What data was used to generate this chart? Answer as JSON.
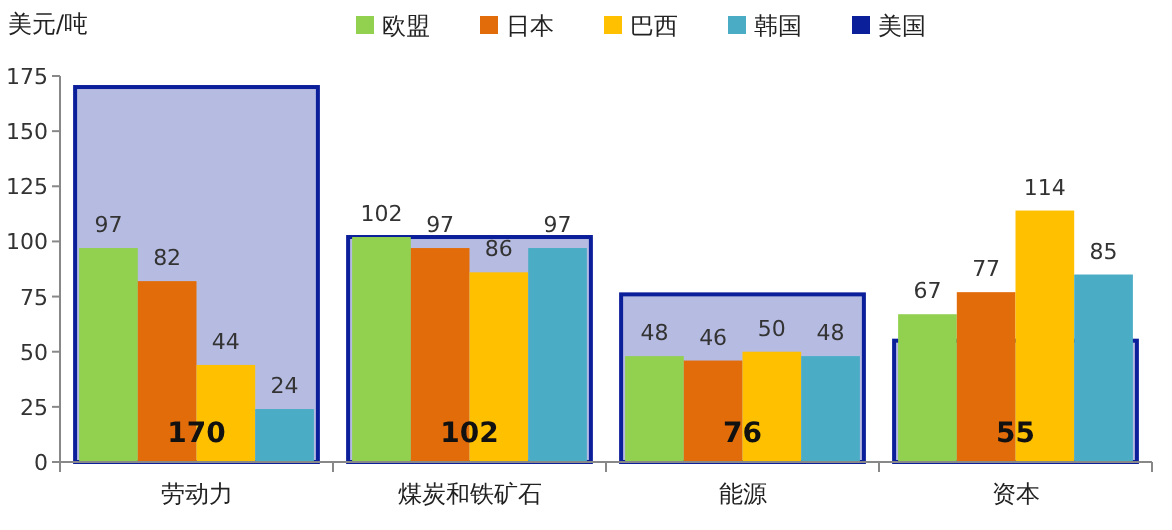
{
  "chart_data": {
    "type": "bar",
    "ylabel": "美元/吨",
    "categories": [
      "劳动力",
      "煤炭和铁矿石",
      "能源",
      "资本"
    ],
    "series": [
      {
        "name": "欧盟",
        "color": "#92d050",
        "values": [
          97,
          102,
          48,
          67
        ]
      },
      {
        "name": "日本",
        "color": "#e36c0a",
        "values": [
          82,
          97,
          46,
          77
        ]
      },
      {
        "name": "巴西",
        "color": "#ffc000",
        "values": [
          44,
          86,
          50,
          114
        ]
      },
      {
        "name": "韩国",
        "color": "#4bacc6",
        "values": [
          24,
          97,
          48,
          85
        ]
      },
      {
        "name": "美国",
        "color": "#0c1f9a",
        "values": [
          170,
          102,
          76,
          55
        ],
        "value_labels": [
          "170",
          "102",
          "76",
          "55"
        ]
      }
    ],
    "ylim": [
      0,
      175
    ],
    "yticks": [
      0,
      25,
      50,
      75,
      100,
      125,
      150,
      175
    ],
    "legend": "top",
    "data_labels": true
  }
}
